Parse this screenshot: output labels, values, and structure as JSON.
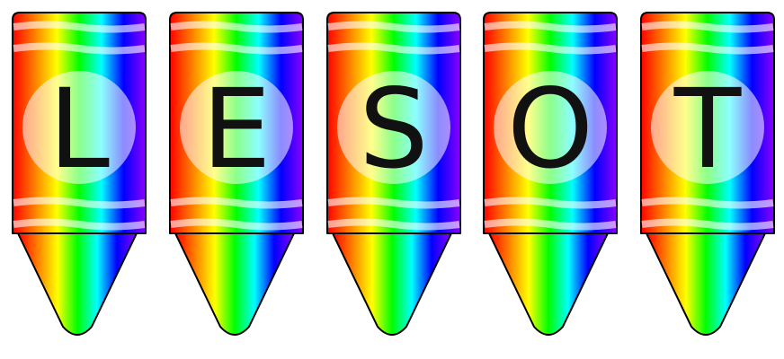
{
  "letters": [
    "L",
    "E",
    "S",
    "O",
    "T"
  ],
  "colors": {
    "rainbow": [
      "#ff0000",
      "#ff7f00",
      "#ffff00",
      "#00ff00",
      "#00ffff",
      "#0000ff",
      "#8b00ff"
    ],
    "outline": "#000000",
    "letter": "#111111",
    "circle_fill": "#ffffff",
    "stripe": "#ffffff"
  }
}
